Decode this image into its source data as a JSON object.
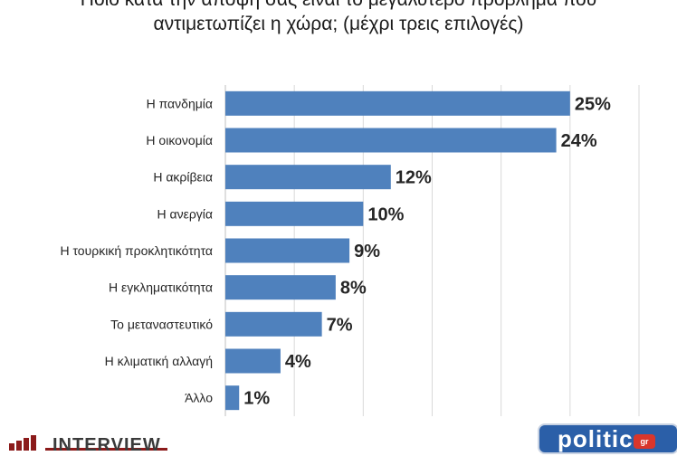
{
  "title_line1": "Ποιο κατά την άποψή σας είναι το μεγαλύτερο πρόβλημα που",
  "title_line2": "αντιμετωπίζει η χώρα; (μέχρι τρεις επιλογές)",
  "chart_data": {
    "type": "bar",
    "orientation": "horizontal",
    "categories": [
      "Η πανδημία",
      "Η οικονομία",
      "Η ακρίβεια",
      "Η ανεργία",
      "Η τουρκική προκλητικότητα",
      "Η εγκληματικότητα",
      "Το μεταναστευτικό",
      "Η κλιματική αλλαγή",
      "Άλλο"
    ],
    "values": [
      25,
      24,
      12,
      10,
      9,
      8,
      7,
      4,
      1
    ],
    "value_labels": [
      "25%",
      "24%",
      "12%",
      "10%",
      "9%",
      "8%",
      "7%",
      "4%",
      "1%"
    ],
    "xlim": [
      0,
      30
    ],
    "grid": true,
    "bar_color": "#4f81bd"
  },
  "logos": {
    "interview": "INTERVIEW",
    "politic": "politic",
    "politic_badge": "gr"
  }
}
